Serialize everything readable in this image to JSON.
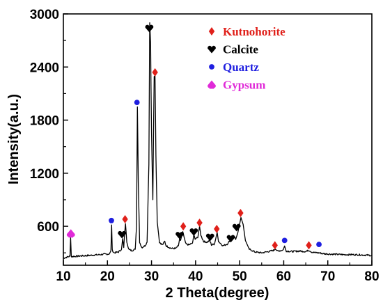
{
  "chart_data": {
    "type": "line",
    "title": "",
    "xlabel": "2 Theta(degree)",
    "ylabel": "Intensity(a.u.)",
    "xlim": [
      10,
      80
    ],
    "ylim": [
      160,
      3000
    ],
    "x_ticks": [
      10,
      20,
      30,
      40,
      50,
      60,
      70,
      80
    ],
    "y_ticks": [
      600,
      1200,
      1800,
      2400,
      3000
    ],
    "grid": false,
    "legend_position": "top-right",
    "series": [
      {
        "color": "#000000",
        "points": [
          [
            10,
            240
          ],
          [
            11,
            255
          ],
          [
            11.5,
            262
          ],
          [
            11.65,
            470
          ],
          [
            11.8,
            258
          ],
          [
            13,
            262
          ],
          [
            15,
            268
          ],
          [
            17,
            275
          ],
          [
            19,
            283
          ],
          [
            20.5,
            288
          ],
          [
            20.8,
            330
          ],
          [
            20.95,
            615
          ],
          [
            21.1,
            330
          ],
          [
            21.5,
            300
          ],
          [
            22.5,
            310
          ],
          [
            23.2,
            340
          ],
          [
            23.45,
            460
          ],
          [
            23.7,
            360
          ],
          [
            23.9,
            520
          ],
          [
            24.1,
            630
          ],
          [
            24.4,
            420
          ],
          [
            24.8,
            340
          ],
          [
            25.5,
            325
          ],
          [
            26.3,
            340
          ],
          [
            26.6,
            600
          ],
          [
            26.8,
            1950
          ],
          [
            27.0,
            1100
          ],
          [
            27.3,
            420
          ],
          [
            27.8,
            360
          ],
          [
            28.5,
            380
          ],
          [
            29.0,
            420
          ],
          [
            29.4,
            1300
          ],
          [
            29.6,
            2900
          ],
          [
            29.8,
            2650
          ],
          [
            30.0,
            1650
          ],
          [
            30.3,
            900
          ],
          [
            30.6,
            2300
          ],
          [
            30.8,
            2300
          ],
          [
            31.0,
            1400
          ],
          [
            31.3,
            650
          ],
          [
            31.8,
            420
          ],
          [
            32.5,
            390
          ],
          [
            33.0,
            430
          ],
          [
            33.3,
            380
          ],
          [
            34.5,
            350
          ],
          [
            35.5,
            350
          ],
          [
            36.1,
            380
          ],
          [
            36.4,
            460
          ],
          [
            36.6,
            440
          ],
          [
            37.1,
            540
          ],
          [
            37.4,
            470
          ],
          [
            37.8,
            400
          ],
          [
            38.5,
            390
          ],
          [
            39.3,
            410
          ],
          [
            39.6,
            500
          ],
          [
            39.9,
            460
          ],
          [
            40.5,
            470
          ],
          [
            40.9,
            600
          ],
          [
            41.2,
            500
          ],
          [
            41.8,
            430
          ],
          [
            42.6,
            420
          ],
          [
            43.2,
            440
          ],
          [
            43.6,
            390
          ],
          [
            44.3,
            400
          ],
          [
            44.9,
            530
          ],
          [
            45.2,
            430
          ],
          [
            46.2,
            380
          ],
          [
            47.2,
            400
          ],
          [
            48.1,
            460
          ],
          [
            48.6,
            500
          ],
          [
            49.1,
            450
          ],
          [
            49.6,
            530
          ],
          [
            50.3,
            700
          ],
          [
            50.8,
            620
          ],
          [
            51.3,
            440
          ],
          [
            52.2,
            340
          ],
          [
            53.5,
            310
          ],
          [
            55.0,
            300
          ],
          [
            56.0,
            310
          ],
          [
            57.0,
            320
          ],
          [
            57.8,
            330
          ],
          [
            58.1,
            350
          ],
          [
            58.5,
            320
          ],
          [
            59.8,
            330
          ],
          [
            60.2,
            375
          ],
          [
            60.6,
            320
          ],
          [
            62.0,
            315
          ],
          [
            63.5,
            320
          ],
          [
            65.0,
            315
          ],
          [
            65.7,
            330
          ],
          [
            66.5,
            305
          ],
          [
            68.0,
            300
          ],
          [
            69.0,
            290
          ],
          [
            71.0,
            285
          ],
          [
            73.5,
            280
          ],
          [
            76.0,
            280
          ],
          [
            78.5,
            275
          ],
          [
            80,
            270
          ]
        ]
      }
    ],
    "legend": [
      {
        "label": "Kutnohorite",
        "color": "#e0201a",
        "marker": "diamond"
      },
      {
        "label": "Calcite",
        "color": "#000000",
        "marker": "heart"
      },
      {
        "label": "Quartz",
        "color": "#1f1fe0",
        "marker": "circle"
      },
      {
        "label": "Gypsum",
        "color": "#e02ad8",
        "marker": "spade"
      }
    ],
    "peak_markers": [
      {
        "x": 11.7,
        "y": 520,
        "kind": "spade",
        "color": "#e02ad8"
      },
      {
        "x": 20.9,
        "y": 665,
        "kind": "circle",
        "color": "#1f1fe0"
      },
      {
        "x": 23.3,
        "y": 510,
        "kind": "heart",
        "color": "#000000"
      },
      {
        "x": 24.0,
        "y": 680,
        "kind": "diamond",
        "color": "#e0201a"
      },
      {
        "x": 26.7,
        "y": 2000,
        "kind": "circle",
        "color": "#1f1fe0"
      },
      {
        "x": 29.5,
        "y": 2840,
        "kind": "heart",
        "color": "#000000"
      },
      {
        "x": 30.8,
        "y": 2340,
        "kind": "diamond",
        "color": "#e0201a"
      },
      {
        "x": 36.4,
        "y": 500,
        "kind": "heart",
        "color": "#000000"
      },
      {
        "x": 37.2,
        "y": 600,
        "kind": "diamond",
        "color": "#e0201a"
      },
      {
        "x": 39.6,
        "y": 540,
        "kind": "heart",
        "color": "#000000"
      },
      {
        "x": 40.9,
        "y": 640,
        "kind": "diamond",
        "color": "#e0201a"
      },
      {
        "x": 43.3,
        "y": 480,
        "kind": "heart",
        "color": "#000000"
      },
      {
        "x": 44.8,
        "y": 570,
        "kind": "diamond",
        "color": "#e0201a"
      },
      {
        "x": 48.0,
        "y": 465,
        "kind": "heart",
        "color": "#000000"
      },
      {
        "x": 49.3,
        "y": 590,
        "kind": "heart",
        "color": "#000000"
      },
      {
        "x": 50.2,
        "y": 750,
        "kind": "diamond",
        "color": "#e0201a"
      },
      {
        "x": 58.0,
        "y": 385,
        "kind": "diamond",
        "color": "#e0201a"
      },
      {
        "x": 60.2,
        "y": 440,
        "kind": "circle",
        "color": "#1f1fe0"
      },
      {
        "x": 65.7,
        "y": 385,
        "kind": "diamond",
        "color": "#e0201a"
      },
      {
        "x": 68.0,
        "y": 395,
        "kind": "circle",
        "color": "#1f1fe0"
      }
    ]
  }
}
